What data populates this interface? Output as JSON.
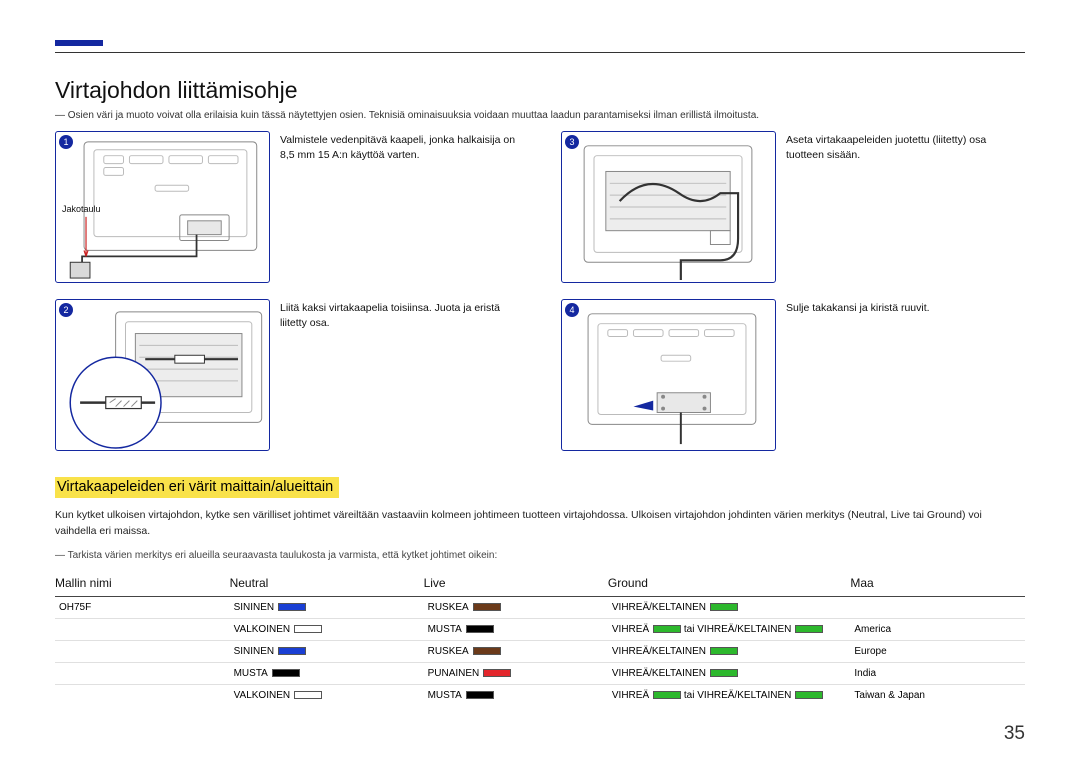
{
  "page_number": "35",
  "heading": "Virtajohdon liittämisohje",
  "intro_note": "Osien väri ja muoto voivat olla erilaisia kuin tässä näytettyjen osien. Teknisiä ominaisuuksia voidaan muuttaa laadun parantamiseksi ilman erillistä ilmoitusta.",
  "steps": [
    {
      "num": "1",
      "text": "Valmistele vedenpitävä kaapeli, jonka halkaisija on 8,5 mm 15 A:n käyttöä varten.",
      "internal_label": "Jakotaulu"
    },
    {
      "num": "3",
      "text": "Aseta virtakaapeleiden juotettu (liitetty) osa tuotteen sisään."
    },
    {
      "num": "2",
      "text": "Liitä kaksi virtakaapelia toisiinsa. Juota ja eristä liitetty osa."
    },
    {
      "num": "4",
      "text": "Sulje takakansi ja kiristä ruuvit."
    }
  ],
  "subheading": "Virtakaapeleiden eri värit maittain/alueittain",
  "sub_para": "Kun kytket ulkoisen virtajohdon, kytke sen värilliset johtimet väreiltään vastaaviin kolmeen johtimeen tuotteen virtajohdossa. Ulkoisen virtajohdon johdinten värien merkitys (Neutral, Live tai Ground) voi vaihdella eri maissa.",
  "sub_note": "Tarkista värien merkitys eri alueilla seuraavasta taulukosta ja varmista, että kytket johtimet oikein:",
  "table": {
    "headers": {
      "model": "Mallin nimi",
      "neutral": "Neutral",
      "live": "Live",
      "ground": "Ground",
      "country": "Maa"
    },
    "rows": [
      {
        "model": "OH75F",
        "neutral": {
          "label": "SININEN",
          "color": "#1a3fd4"
        },
        "live": {
          "label": "RUSKEA",
          "color": "#6b3a1a"
        },
        "ground_parts": [
          {
            "label": "VIHREÄ/KELTAINEN",
            "color": "#2db82d"
          }
        ],
        "country": ""
      },
      {
        "model": "",
        "neutral": {
          "label": "VALKOINEN",
          "color": "#ffffff"
        },
        "live": {
          "label": "MUSTA",
          "color": "#000000"
        },
        "ground_parts": [
          {
            "label": "VIHREÄ",
            "color": "#2db82d"
          },
          {
            "label": " tai VIHREÄ/KELTAINEN",
            "color": "#2db82d"
          }
        ],
        "country": "America"
      },
      {
        "model": "",
        "neutral": {
          "label": "SININEN",
          "color": "#1a3fd4"
        },
        "live": {
          "label": "RUSKEA",
          "color": "#6b3a1a"
        },
        "ground_parts": [
          {
            "label": "VIHREÄ/KELTAINEN",
            "color": "#2db82d"
          }
        ],
        "country": "Europe"
      },
      {
        "model": "",
        "neutral": {
          "label": "MUSTA",
          "color": "#000000"
        },
        "live": {
          "label": "PUNAINEN",
          "color": "#e3262c"
        },
        "ground_parts": [
          {
            "label": "VIHREÄ/KELTAINEN",
            "color": "#2db82d"
          }
        ],
        "country": "India"
      },
      {
        "model": "",
        "neutral": {
          "label": "VALKOINEN",
          "color": "#ffffff"
        },
        "live": {
          "label": "MUSTA",
          "color": "#000000"
        },
        "ground_parts": [
          {
            "label": "VIHREÄ",
            "color": "#2db82d"
          },
          {
            "label": " tai VIHREÄ/KELTAINEN",
            "color": "#2db82d"
          }
        ],
        "country": "Taiwan & Japan"
      }
    ]
  },
  "colors": {
    "accent": "#1428a0",
    "highlight": "#f9e24a"
  }
}
